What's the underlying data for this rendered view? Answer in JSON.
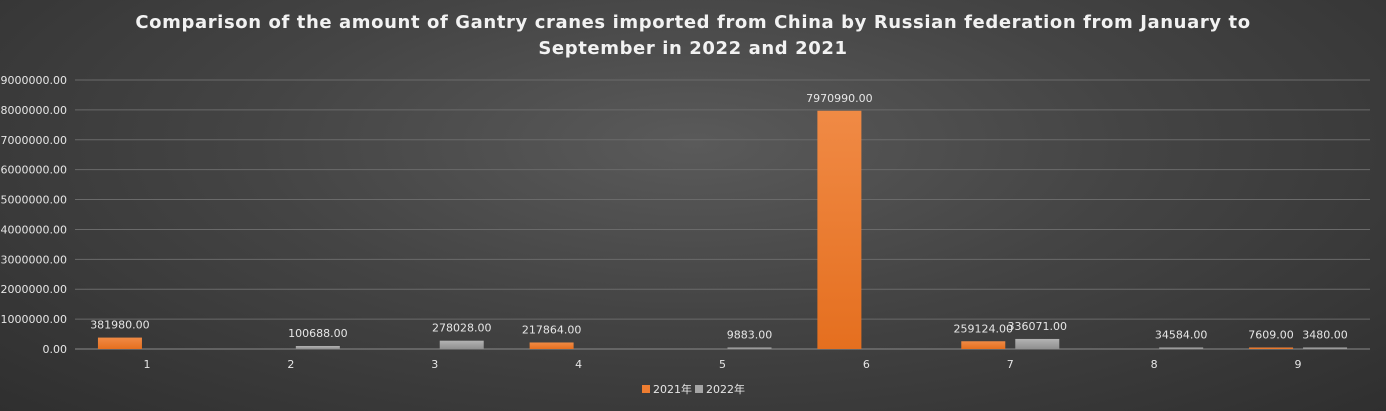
{
  "chart_data": {
    "type": "bar",
    "title_lines": [
      "Comparison of the amount of Gantry cranes imported from China by Russian federation from January to",
      "September in 2022 and 2021"
    ],
    "categories": [
      "1",
      "2",
      "3",
      "4",
      "5",
      "6",
      "7",
      "8",
      "9"
    ],
    "series": [
      {
        "name": "2021年",
        "color": "#ee7d31",
        "values": [
          381980,
          null,
          null,
          217864,
          null,
          7970990,
          259124,
          null,
          7609
        ],
        "labels": [
          "381980.00",
          "",
          "",
          "217864.00",
          "",
          "7970990.00",
          "259124.00",
          "",
          "7609.00"
        ]
      },
      {
        "name": "2022年",
        "color": "#a5a5a5",
        "values": [
          null,
          100688,
          278028,
          null,
          9883,
          null,
          336071,
          34584,
          3480
        ],
        "labels": [
          "",
          "100688.00",
          "278028.00",
          "",
          "9883.00",
          "",
          "336071.00",
          "34584.00",
          "3480.00"
        ]
      }
    ],
    "ylim": [
      0,
      9000000
    ],
    "yticks": [
      0,
      1000000,
      2000000,
      3000000,
      4000000,
      5000000,
      6000000,
      7000000,
      8000000,
      9000000
    ],
    "ytick_labels": [
      "0.00",
      "1000000.00",
      "2000000.00",
      "3000000.00",
      "4000000.00",
      "5000000.00",
      "6000000.00",
      "7000000.00",
      "8000000.00",
      "9000000.00"
    ],
    "grid": true,
    "legend_position": "bottom"
  }
}
